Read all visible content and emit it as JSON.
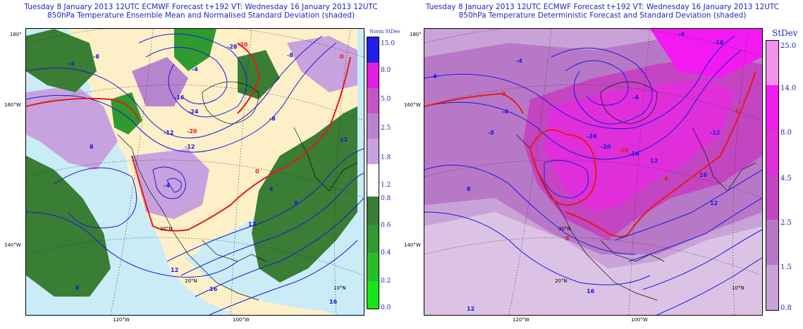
{
  "left_panel": {
    "title_line1": "Tuesday 8 January 2013 12UTC ECMWF Forecast t+192  VT: Wednesday 16 January 2013 12UTC",
    "title_line2": "850hPa Temperature Ensemble Mean and Normalised Standard Deviation (shaded)",
    "legend_title": "Norm StDev",
    "legend_upper": [
      {
        "label": "15.0",
        "color": "#2020e8"
      },
      {
        "label": "8.0",
        "color": "#e21ee2"
      },
      {
        "label": "5.0",
        "color": "#c454c8"
      },
      {
        "label": "2.5",
        "color": "#b884d0"
      },
      {
        "label": "1.8",
        "color": "#c8a2de"
      },
      {
        "label": "1.2",
        "color": "#ffffff"
      }
    ],
    "legend_lower": [
      {
        "label": "0.8",
        "color": "#3a7d34"
      },
      {
        "label": "0.6",
        "color": "#2f9a2f"
      },
      {
        "label": "0.4",
        "color": "#27bf27"
      },
      {
        "label": "0.2",
        "color": "#16e616"
      },
      {
        "label": "0.0",
        "color": "#ffffff"
      }
    ],
    "lat_labels": [
      "180°",
      "160°W",
      "140°W",
      "30°N",
      "20°N",
      "10°N"
    ],
    "lon_labels": [
      "120°W",
      "100°W"
    ],
    "contour_labels": [
      "-8",
      "-4",
      "-28",
      "-20",
      "-24",
      "-16",
      "-12",
      "-20",
      "0",
      "-4",
      "-12",
      "-8",
      "8",
      "4",
      "0",
      "12",
      "8",
      "12",
      "16",
      "8",
      "12",
      "16",
      "-4",
      "-8"
    ]
  },
  "right_panel": {
    "title_line1": "Tuesday 8 January 2013 12UTC ECMWF Forecast t+192  VT: Wednesday 16 January 2013 12UTC",
    "title_line2": "850hPa Temperature Deterministic Forecast and Standard Deviation (shaded)",
    "legend_title": "StDev",
    "legend": [
      {
        "label": "25.0",
        "color": "#f592ef"
      },
      {
        "label": "14.0",
        "color": "#f21af0"
      },
      {
        "label": "8.0",
        "color": "#e02edb"
      },
      {
        "label": "4.5",
        "color": "#c445c2"
      },
      {
        "label": "2.5",
        "color": "#b878c8"
      },
      {
        "label": "1.5",
        "color": "#c9a2d8"
      },
      {
        "label": "0.8",
        "color": "#dcc3e6"
      }
    ],
    "lat_labels": [
      "180°",
      "160°W",
      "140°W",
      "30°N",
      "20°N",
      "10°N"
    ],
    "lon_labels": [
      "120°W",
      "100°W"
    ],
    "contour_labels": [
      "-4",
      "-16",
      "-4",
      "4",
      "-24",
      "-20",
      "-16",
      "-12",
      "-8",
      "-4",
      "0",
      "4",
      "8",
      "12",
      "16",
      "-20",
      "-4",
      "0",
      "4",
      "8",
      "12",
      "16",
      "12"
    ]
  },
  "colors": {
    "title": "#1f1fbf",
    "ocean": "#c9ecf7",
    "land_low": "#fdf0c8",
    "contour_blue": "#1a1ad8",
    "contour_red": "#e61a1a"
  }
}
